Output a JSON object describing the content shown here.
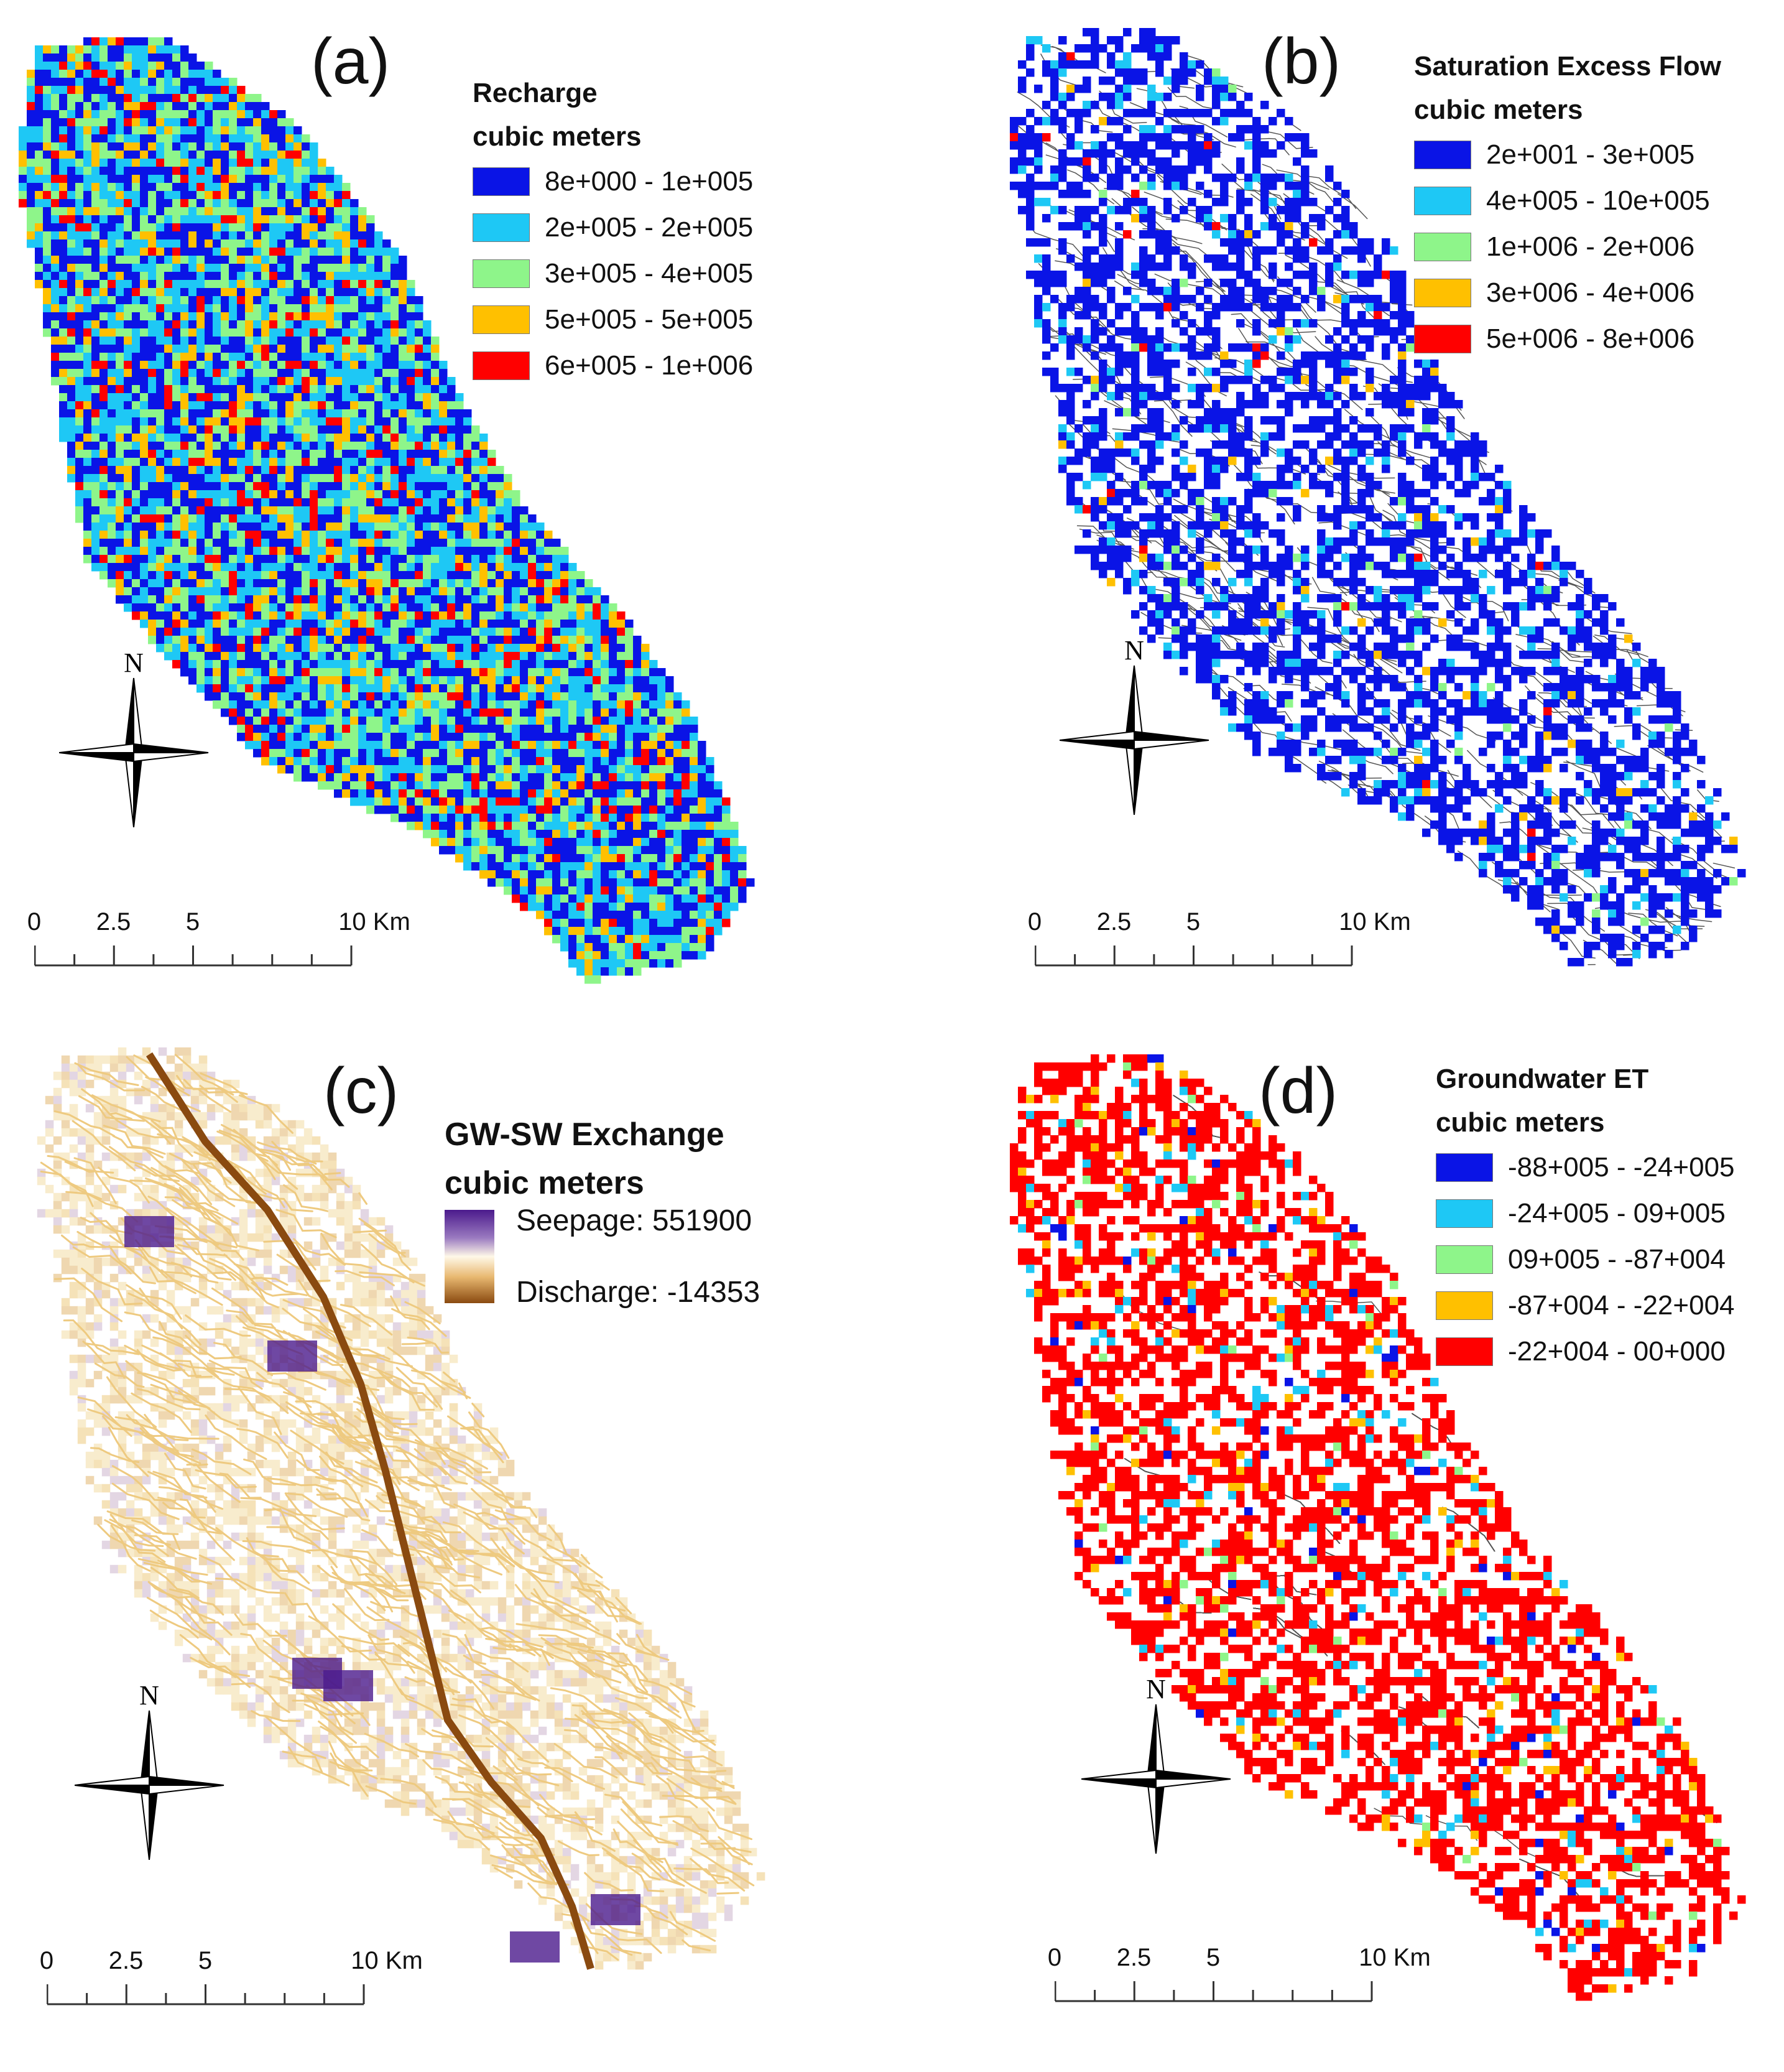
{
  "panels": {
    "a": {
      "label": "(a)",
      "legend_title_1": "Recharge",
      "legend_title_2": "cubic meters",
      "classes": [
        {
          "label": "8e+000 - 1e+005",
          "color": "#0a14e6"
        },
        {
          "label": "2e+005 - 2e+005",
          "color": "#1ec8f5"
        },
        {
          "label": "3e+005 - 4e+005",
          "color": "#8ef58a"
        },
        {
          "label": "5e+005 - 5e+005",
          "color": "#ffc000"
        },
        {
          "label": "6e+005 - 1e+006",
          "color": "#ff0000"
        }
      ]
    },
    "b": {
      "label": "(b)",
      "legend_title_1": "Saturation Excess Flow",
      "legend_title_2": "cubic meters",
      "classes": [
        {
          "label": "2e+001 - 3e+005",
          "color": "#0a14e6"
        },
        {
          "label": "4e+005 - 10e+005",
          "color": "#1ec8f5"
        },
        {
          "label": "1e+006 - 2e+006",
          "color": "#8ef58a"
        },
        {
          "label": "3e+006 - 4e+006",
          "color": "#ffc000"
        },
        {
          "label": "5e+006 - 8e+006",
          "color": "#ff0000"
        }
      ]
    },
    "c": {
      "label": "(c)",
      "legend_title_1": "GW-SW Exchange",
      "legend_title_2": "cubic meters",
      "seepage_label": "Seepage: 551900",
      "discharge_label": "Discharge: -14353",
      "colors": {
        "seepage": "#4b1a8c",
        "mid": "#fff8e8",
        "discharge": "#8a4a10"
      }
    },
    "d": {
      "label": "(d)",
      "legend_title_1": "Groundwater ET",
      "legend_title_2": "cubic meters",
      "classes": [
        {
          "label": "-88+005 - -24+005",
          "color": "#0a14e6"
        },
        {
          "label": "-24+005 - 09+005",
          "color": "#1ec8f5"
        },
        {
          "label": "09+005 - -87+004",
          "color": "#8ef58a"
        },
        {
          "label": "-87+004 - -22+004",
          "color": "#ffc000"
        },
        {
          "label": "-22+004 - 00+000",
          "color": "#ff0000"
        }
      ]
    }
  },
  "north_label": "N",
  "scale": {
    "ticks": [
      "0",
      "2.5",
      "5",
      "10 Km"
    ]
  }
}
